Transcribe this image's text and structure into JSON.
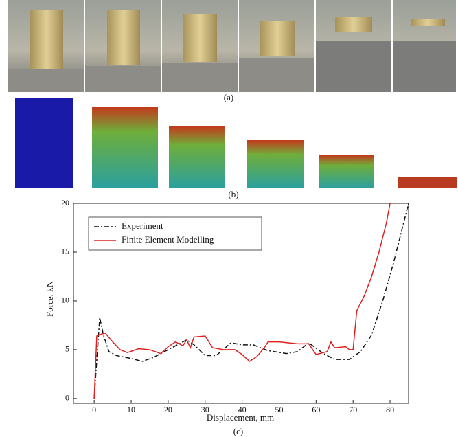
{
  "chart_data": {
    "type": "line",
    "annotations": [
      "(a)",
      "(b)",
      "(c)"
    ],
    "x_label": "Displacement, mm",
    "y_label": "Force, kN",
    "xlim": [
      -5.6,
      85
    ],
    "ylim": [
      -0.5,
      20
    ],
    "xticks": [
      0,
      10,
      20,
      30,
      40,
      50,
      60,
      70,
      80
    ],
    "yticks": [
      0,
      5,
      10,
      15,
      20
    ],
    "legend": "upper-left",
    "series": [
      {
        "name": "Experiment",
        "color": "#111111",
        "dash": "dashdot",
        "x": [
          0,
          1.5,
          2.5,
          4,
          6,
          10,
          13,
          16,
          20,
          25,
          27,
          30,
          33,
          37,
          40,
          43,
          47,
          52,
          55,
          58,
          62,
          65,
          69,
          72,
          75,
          78,
          81,
          83,
          85
        ],
        "values": [
          0,
          8.3,
          6.5,
          4.8,
          4.4,
          4.1,
          3.8,
          4.2,
          5.0,
          6.0,
          5.5,
          4.4,
          4.4,
          5.7,
          5.5,
          5.5,
          4.9,
          4.6,
          4.8,
          5.7,
          4.6,
          4.0,
          4.0,
          4.8,
          6.5,
          10,
          14,
          17,
          20
        ]
      },
      {
        "name": "Finite Element Modelling",
        "color": "#e02020",
        "dash": "solid",
        "x": [
          0,
          0.7,
          2,
          3,
          5,
          7,
          9,
          12,
          15,
          18,
          20,
          22,
          24,
          25,
          26,
          27,
          30,
          32,
          35,
          38,
          40,
          42,
          44,
          46,
          47,
          50,
          55,
          58,
          60,
          63,
          64,
          65,
          68,
          69,
          70,
          71,
          73,
          75,
          77,
          79,
          80
        ],
        "values": [
          0,
          6.4,
          6.6,
          6.7,
          5.8,
          5.0,
          4.7,
          5.1,
          5.0,
          4.6,
          5.3,
          5.8,
          5.4,
          6.0,
          5.2,
          6.3,
          6.4,
          5.2,
          5.0,
          5.0,
          4.5,
          3.8,
          4.3,
          5.2,
          5.8,
          5.8,
          5.6,
          5.6,
          4.5,
          4.8,
          5.8,
          5.2,
          5.3,
          5.0,
          5.0,
          9.0,
          10.5,
          12.5,
          15,
          18,
          20
        ]
      }
    ]
  }
}
